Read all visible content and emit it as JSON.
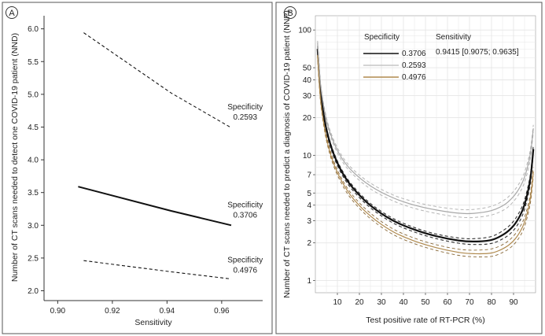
{
  "chart_data": [
    {
      "type": "line",
      "panel_label": "A",
      "xlabel": "Sensitivity",
      "ylabel": "Number of CT scans needed to detect one COVID-19 patient (NND)",
      "xlim": [
        0.895,
        0.975
      ],
      "ylim": [
        1.85,
        6.2
      ],
      "xticks": [
        0.9,
        0.92,
        0.94,
        0.96
      ],
      "xtick_labels": [
        "0.90",
        "0.92",
        "0.94",
        "0.96"
      ],
      "yticks": [
        2.0,
        2.5,
        3.0,
        3.5,
        4.0,
        4.5,
        5.0,
        5.5,
        6.0
      ],
      "ytick_labels": [
        "2.0",
        "2.5",
        "3.0",
        "3.5",
        "4.0",
        "4.5",
        "5.0",
        "5.5",
        "6.0"
      ],
      "grid": false,
      "series": [
        {
          "name": "Specificity 0.2593",
          "style": "dashed",
          "x": [
            0.9095,
            0.9415,
            0.9635
          ],
          "y": [
            5.94,
            5.02,
            4.49
          ]
        },
        {
          "name": "Specificity 0.3706",
          "style": "solid",
          "x": [
            0.9075,
            0.9415,
            0.9635
          ],
          "y": [
            3.59,
            3.22,
            3.0
          ]
        },
        {
          "name": "Specificity 0.4976",
          "style": "dashed",
          "x": [
            0.9095,
            0.9415,
            0.9635
          ],
          "y": [
            2.46,
            2.29,
            2.18
          ]
        }
      ],
      "annotations": [
        {
          "title": "Specificity",
          "value": "0.2593",
          "x": 0.964,
          "y": 4.7
        },
        {
          "title": "Specificity",
          "value": "0.3706",
          "x": 0.964,
          "y": 3.2
        },
        {
          "title": "Specificity",
          "value": "0.4976",
          "x": 0.964,
          "y": 2.36
        }
      ]
    },
    {
      "type": "line",
      "panel_label": "B",
      "xlabel": "Test positive rate of RT-PCR (%)",
      "ylabel": "Number of CT scans needed to predict a diagnosis of COVID-19 patient (NNP)",
      "xlim": [
        0,
        100
      ],
      "ylim": [
        0.8,
        130
      ],
      "yscale": "log",
      "xticks": [
        10,
        20,
        30,
        40,
        50,
        60,
        70,
        80,
        90
      ],
      "xtick_labels": [
        "10",
        "20",
        "30",
        "40",
        "50",
        "60",
        "70",
        "80",
        "90"
      ],
      "yticks": [
        1,
        2,
        3,
        4,
        5,
        7,
        10,
        20,
        30,
        40,
        50,
        100
      ],
      "ytick_labels": [
        "1",
        "2",
        "3",
        "4",
        "5",
        "7",
        "10",
        "20",
        "30",
        "40",
        "50",
        "100"
      ],
      "grid": true,
      "legend": {
        "title": "Specificity",
        "entries": [
          "0.3706",
          "0.2593",
          "0.4976"
        ],
        "sensitivity_title": "Sensitivity",
        "sensitivity_value": "0.9415 [0.9075; 0.9635]"
      },
      "x": [
        1,
        2,
        3,
        5,
        8,
        12,
        17,
        25,
        35,
        45,
        55,
        65,
        72,
        80,
        86,
        90,
        93,
        95,
        97,
        98,
        99
      ],
      "series": [
        {
          "name": "0.3706",
          "color": "#111111",
          "width": 2.2,
          "style": "solid",
          "values": [
            70.6,
            38.0,
            26.0,
            16.2,
            10.6,
            7.4,
            5.5,
            3.98,
            3.03,
            2.55,
            2.26,
            2.09,
            2.05,
            2.11,
            2.37,
            2.74,
            3.31,
            4.04,
            5.63,
            7.3,
            11.2
          ]
        },
        {
          "name": "0.3706 (CI)",
          "color": "#333333",
          "width": 1.1,
          "style": "dashed",
          "values": [
            74.1,
            39.5,
            27.0,
            16.8,
            11.0,
            7.68,
            5.71,
            4.13,
            3.15,
            2.65,
            2.35,
            2.19,
            2.16,
            2.25,
            2.56,
            2.98,
            3.62,
            4.4,
            6.1,
            7.85,
            11.9
          ]
        },
        {
          "name": "0.3706 (CI)",
          "color": "#333333",
          "width": 1.1,
          "style": "dashed",
          "values": [
            66.7,
            36.0,
            24.6,
            15.4,
            10.1,
            7.05,
            5.25,
            3.81,
            2.9,
            2.44,
            2.16,
            1.99,
            1.94,
            1.98,
            2.2,
            2.52,
            3.03,
            3.7,
            5.15,
            6.7,
            10.4
          ]
        },
        {
          "name": "0.2593",
          "color": "#a8a8a8",
          "width": 1.2,
          "style": "solid",
          "values": [
            79.0,
            43.0,
            30.0,
            19.2,
            13.1,
            9.5,
            7.4,
            5.7,
            4.6,
            4.0,
            3.66,
            3.45,
            3.44,
            3.62,
            4.05,
            4.7,
            5.6,
            6.7,
            9.0,
            11.4,
            16.4
          ]
        },
        {
          "name": "0.2593 (CI)",
          "color": "#b5b5b5",
          "width": 1.0,
          "style": "dashed",
          "values": [
            82.0,
            45.0,
            31.3,
            20.0,
            13.7,
            9.95,
            7.75,
            6.0,
            4.85,
            4.25,
            3.9,
            3.7,
            3.7,
            3.92,
            4.42,
            5.15,
            6.15,
            7.3,
            9.8,
            12.3,
            17.5
          ]
        },
        {
          "name": "0.2593 (CI)",
          "color": "#b5b5b5",
          "width": 1.0,
          "style": "dashed",
          "values": [
            76.0,
            41.0,
            28.7,
            18.4,
            12.5,
            9.05,
            7.05,
            5.4,
            4.35,
            3.77,
            3.43,
            3.22,
            3.19,
            3.34,
            3.7,
            4.28,
            5.1,
            6.1,
            8.2,
            10.5,
            15.3
          ]
        },
        {
          "name": "0.4976",
          "color": "#b08a4e",
          "width": 1.2,
          "style": "solid",
          "values": [
            63.0,
            33.0,
            22.4,
            13.8,
            8.9,
            6.2,
            4.55,
            3.28,
            2.47,
            2.07,
            1.83,
            1.68,
            1.64,
            1.66,
            1.83,
            2.08,
            2.46,
            2.93,
            3.95,
            5.0,
            7.4
          ]
        },
        {
          "name": "0.4976 (CI)",
          "color": "#8a6a3a",
          "width": 0.9,
          "style": "dashed",
          "values": [
            66.0,
            34.6,
            23.5,
            14.5,
            9.35,
            6.5,
            4.78,
            3.45,
            2.6,
            2.18,
            1.93,
            1.78,
            1.75,
            1.79,
            1.98,
            2.27,
            2.7,
            3.2,
            4.3,
            5.45,
            8.0
          ]
        },
        {
          "name": "0.4976 (CI)",
          "color": "#8a6a3a",
          "width": 0.9,
          "style": "dashed",
          "values": [
            60.0,
            31.5,
            21.4,
            13.2,
            8.5,
            5.9,
            4.33,
            3.12,
            2.35,
            1.97,
            1.74,
            1.59,
            1.55,
            1.56,
            1.71,
            1.93,
            2.27,
            2.7,
            3.65,
            4.6,
            6.8
          ]
        }
      ]
    }
  ]
}
